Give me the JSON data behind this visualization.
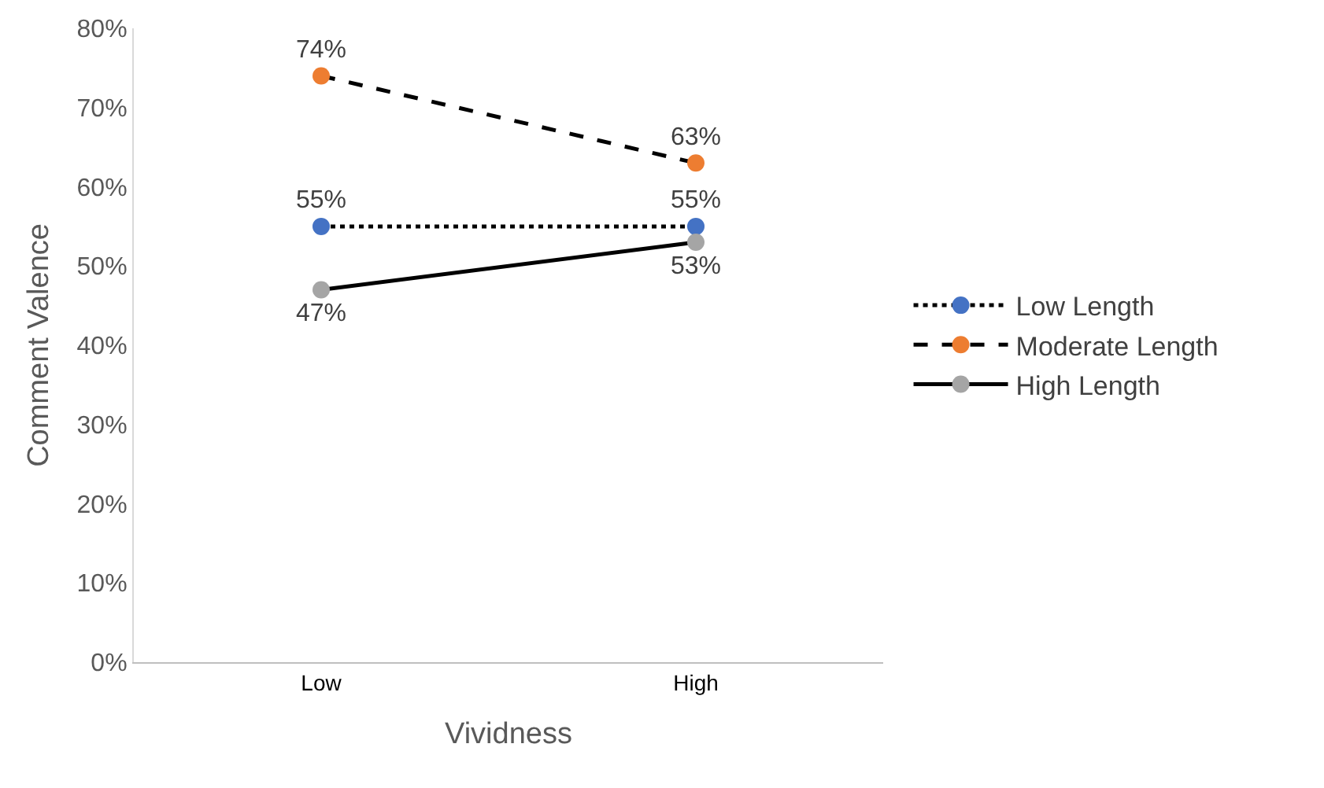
{
  "chart_data": {
    "type": "line",
    "xlabel": "Vividness",
    "ylabel": "Comment Valence",
    "categories": [
      "Low",
      "High"
    ],
    "series": [
      {
        "name": "Low Length",
        "color": "#000000",
        "colors": [
          "#4472c4",
          "#4472c4"
        ],
        "line_style": "dotted",
        "values": [
          55,
          55
        ]
      },
      {
        "name": "Moderate Length",
        "color": "#000000",
        "colors": [
          "#ed7d31",
          "#ed7d31"
        ],
        "line_style": "dashed",
        "values": [
          74,
          63
        ]
      },
      {
        "name": "High Length",
        "color": "#000000",
        "colors": [
          "#a5a5a5",
          "#a5a5a5"
        ],
        "line_style": "solid",
        "values": [
          47,
          53
        ]
      }
    ],
    "value_labels": [
      [
        "55%",
        "55%"
      ],
      [
        "74%",
        "63%"
      ],
      [
        "47%",
        "53%"
      ]
    ],
    "ylim": [
      0,
      80
    ],
    "yticks": [
      {
        "value": 0,
        "label": "0%"
      },
      {
        "value": 10,
        "label": "10%"
      },
      {
        "value": 20,
        "label": "20%"
      },
      {
        "value": 30,
        "label": "30%"
      },
      {
        "value": 40,
        "label": "40%"
      },
      {
        "value": 50,
        "label": "50%"
      },
      {
        "value": 60,
        "label": "60%"
      },
      {
        "value": 70,
        "label": "70%"
      },
      {
        "value": 80,
        "label": "80%"
      }
    ],
    "grid": false,
    "legend": "right",
    "marker": "circle"
  }
}
